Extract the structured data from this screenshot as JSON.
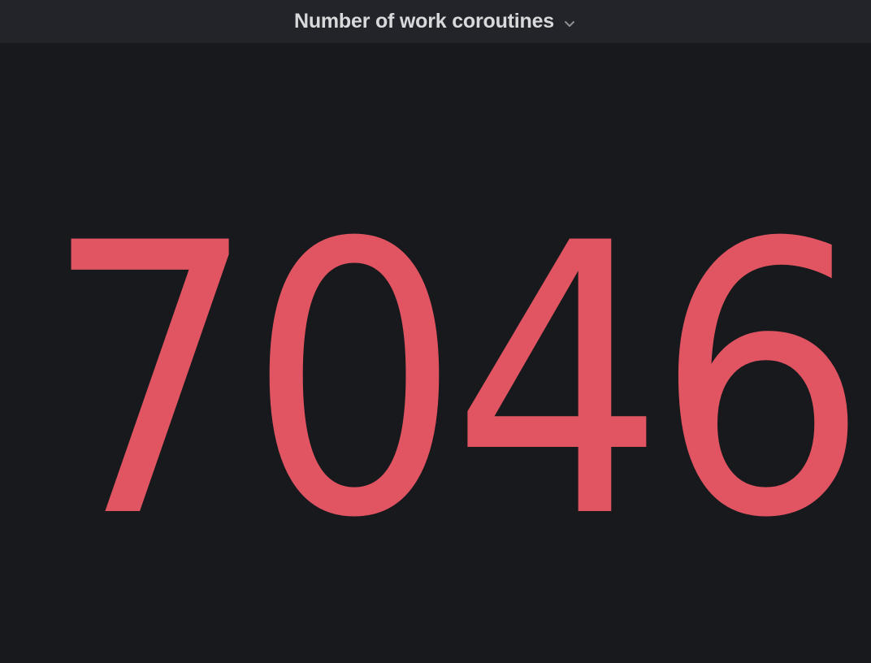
{
  "panel": {
    "title": "Number of work coroutines",
    "menu_icon": "chevron-down-icon",
    "stat_value": "7046",
    "colors": {
      "background": "#18191d",
      "header_background": "#222429",
      "title": "#d8d9da",
      "value": "#e05561"
    }
  }
}
